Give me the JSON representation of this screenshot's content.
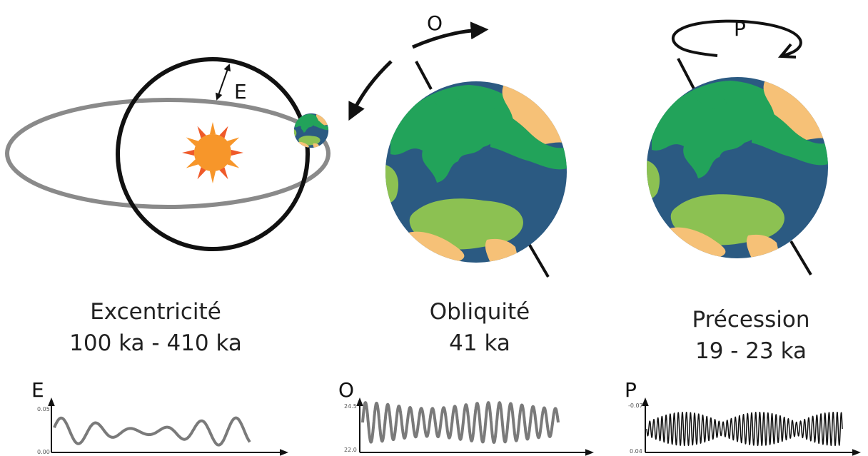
{
  "panels": {
    "eccentricity": {
      "marker": "E",
      "title": "Excentricité",
      "period": "100 ka - 410 ka",
      "graph": {
        "label": "E",
        "y_max_label": "0.05",
        "y_min_label": "0.00",
        "line_color": "#7a7a7a",
        "waveform": "eccentricity"
      }
    },
    "obliquity": {
      "marker": "O",
      "title": "Obliquité",
      "period": "41 ka",
      "graph": {
        "label": "O",
        "y_max_label": "24.5",
        "y_min_label": "22.0",
        "line_color": "#7a7a7a",
        "waveform": "obliquity"
      }
    },
    "precession": {
      "marker": "P",
      "title": "Précession",
      "period": "19 - 23 ka",
      "graph": {
        "label": "P",
        "y_max_label": "-0.07",
        "y_min_label": "0.04",
        "line_color": "#111111",
        "waveform": "precession"
      }
    }
  },
  "colors": {
    "ocean": "#2b5a82",
    "land_green": "#22a35a",
    "land_light_green": "#8cc152",
    "land_sand": "#f6c177",
    "sun_orange": "#f7962a",
    "sun_ray": "#ef5a2a",
    "orbit_grey": "#8a8a8a",
    "ink": "#111111"
  }
}
